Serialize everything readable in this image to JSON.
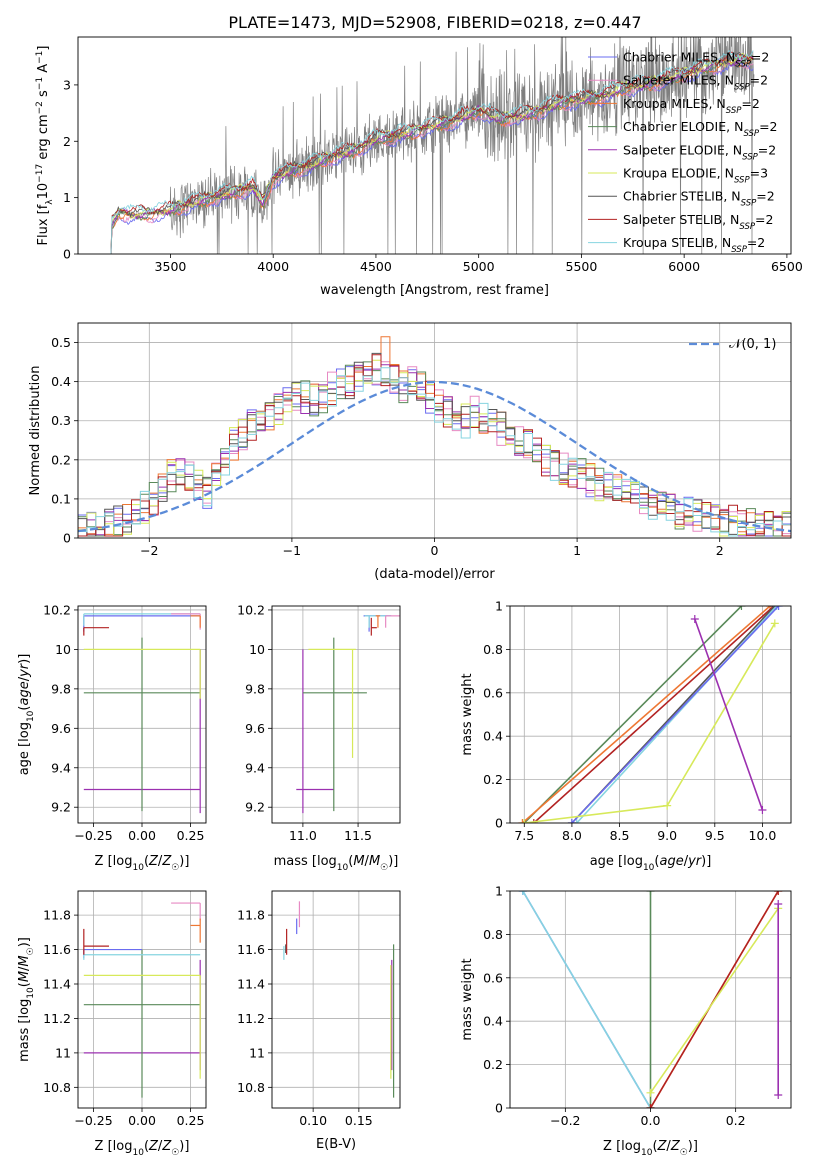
{
  "figure_title": "PLATE=1473, MJD=52908, FIBERID=0218, z=0.447",
  "colors": {
    "Chabrier MILES": "#6a6cf0",
    "Salpeter MILES": "#e78ac3",
    "Kroupa MILES": "#ee7733",
    "Chabrier ELODIE": "#5a8a5a",
    "Salpeter ELODIE": "#9b30b0",
    "Kroupa ELODIE": "#d7e95a",
    "Chabrier STELIB": "#555555",
    "Salpeter STELIB": "#b22222",
    "Kroupa STELIB": "#86d4e0",
    "data": "#7f7f7f",
    "normal_curve": "#5b8bd8"
  },
  "chart_data": [
    {
      "id": "spectrum",
      "type": "line",
      "title": "PLATE=1473, MJD=52908, FIBERID=0218, z=0.447",
      "xlabel": "wavelength [Angstrom, rest frame]",
      "ylabel_parts": [
        "Flux [f",
        "λ",
        "10",
        "−17",
        " erg cm",
        "−2",
        " s",
        "−1",
        " A",
        "−1",
        "]"
      ],
      "xlim": [
        3050,
        6520
      ],
      "ylim": [
        0,
        3.85
      ],
      "xticks": [
        3500,
        4000,
        4500,
        5000,
        5500,
        6000,
        6500
      ],
      "yticks": [
        0,
        1,
        2,
        3
      ],
      "legend": [
        {
          "name": "Chabrier MILES",
          "nssp": "2"
        },
        {
          "name": "Salpeter MILES",
          "nssp": "2"
        },
        {
          "name": "Kroupa MILES",
          "nssp": "2"
        },
        {
          "name": "Chabrier ELODIE",
          "nssp": "2"
        },
        {
          "name": "Salpeter ELODIE",
          "nssp": "2"
        },
        {
          "name": "Kroupa ELODIE",
          "nssp": "3"
        },
        {
          "name": "Chabrier STELIB",
          "nssp": "2"
        },
        {
          "name": "Salpeter STELIB",
          "nssp": "2"
        },
        {
          "name": "Kroupa STELIB",
          "nssp": "2"
        }
      ],
      "continuum": {
        "x": [
          3210,
          3250,
          3300,
          3400,
          3500,
          3600,
          3700,
          3800,
          3900,
          3950,
          4000,
          4100,
          4200,
          4300,
          4400,
          4500,
          4600,
          4700,
          4800,
          4900,
          5000,
          5100,
          5200,
          5300,
          5400,
          5500,
          5600,
          5700,
          5800,
          5900,
          6000,
          6100,
          6200,
          6300
        ],
        "y": [
          0.5,
          0.75,
          0.7,
          0.72,
          0.78,
          0.9,
          1.0,
          1.1,
          1.2,
          0.9,
          1.35,
          1.5,
          1.6,
          1.75,
          1.85,
          2.05,
          2.1,
          2.2,
          2.3,
          2.4,
          2.55,
          2.4,
          2.45,
          2.55,
          2.7,
          2.75,
          2.8,
          2.95,
          3.0,
          3.1,
          3.2,
          3.3,
          3.4,
          3.45
        ]
      },
      "data_x_range": [
        3210,
        6340
      ],
      "data_noise_start": 3500
    },
    {
      "id": "residuals",
      "type": "histogram",
      "xlabel": "(data-model)/error",
      "ylabel": "Normed distribution",
      "xlim": [
        -2.5,
        2.5
      ],
      "ylim": [
        0,
        0.55
      ],
      "xticks": [
        -2,
        -1,
        0,
        1,
        2
      ],
      "yticks": [
        0,
        0.1,
        0.2,
        0.3,
        0.4,
        0.5
      ],
      "bin_width": 0.1,
      "bin_start": -2.5,
      "reference_label": "𝒩(0, 1)",
      "envelope": [
        0.02,
        0.025,
        0.03,
        0.035,
        0.04,
        0.05,
        0.06,
        0.08,
        0.1,
        0.13,
        0.16,
        0.17,
        0.16,
        0.13,
        0.12,
        0.15,
        0.2,
        0.24,
        0.27,
        0.29,
        0.3,
        0.31,
        0.33,
        0.35,
        0.37,
        0.36,
        0.35,
        0.36,
        0.38,
        0.39,
        0.4,
        0.41,
        0.42,
        0.43,
        0.41,
        0.4,
        0.39,
        0.4,
        0.38,
        0.36,
        0.34,
        0.32,
        0.31,
        0.3,
        0.32,
        0.31,
        0.3,
        0.28,
        0.26,
        0.25,
        0.24,
        0.22,
        0.2,
        0.19,
        0.18,
        0.17,
        0.16,
        0.15,
        0.14,
        0.14,
        0.13,
        0.12,
        0.11,
        0.1,
        0.09,
        0.08,
        0.07,
        0.065,
        0.06,
        0.055,
        0.05,
        0.045,
        0.04,
        0.04,
        0.035,
        0.035,
        0.03,
        0.03,
        0.03,
        0.03
      ]
    },
    {
      "id": "z_vs_age",
      "type": "errorbar",
      "xlabel": "Z [log10(Z/Z☉)]",
      "ylabel": "age  [log10(age/yr)]",
      "xlim": [
        -0.33,
        0.33
      ],
      "ylim": [
        9.12,
        10.22
      ],
      "xticks": [
        -0.25,
        0,
        0.25
      ],
      "xticklabels": [
        "−0.25",
        "0.00",
        "0.25"
      ],
      "yticks": [
        9.2,
        9.4,
        9.6,
        9.8,
        10.0,
        10.2
      ],
      "points": [
        {
          "model": "Salpeter ELODIE",
          "x": 0.3,
          "y": 9.29,
          "xerr": [
            0.6,
            0.0
          ],
          "yerr": [
            0.12,
            0.71
          ]
        },
        {
          "model": "Chabrier ELODIE",
          "x": 0.0,
          "y": 9.78,
          "xerr": [
            0.3,
            0.3
          ],
          "yerr": [
            0.6,
            0.28
          ]
        },
        {
          "model": "Kroupa ELODIE",
          "x": 0.3,
          "y": 10.0,
          "xerr": [
            0.6,
            0.0
          ],
          "yerr": [
            0.25,
            0.0
          ]
        },
        {
          "model": "Chabrier MILES",
          "x": -0.3,
          "y": 10.17,
          "xerr": [
            0.0,
            0.6
          ],
          "yerr": [
            0.08,
            0.0
          ]
        },
        {
          "model": "Kroupa STELIB",
          "x": -0.3,
          "y": 10.18,
          "xerr": [
            0.0,
            0.6
          ],
          "yerr": [
            0.06,
            0.0
          ]
        },
        {
          "model": "Salpeter STELIB",
          "x": -0.3,
          "y": 10.11,
          "xerr": [
            0.0,
            0.13
          ],
          "yerr": [
            0.04,
            0.0
          ]
        },
        {
          "model": "Salpeter MILES",
          "x": 0.3,
          "y": 10.18,
          "xerr": [
            0.15,
            0.0
          ],
          "yerr": [
            0.08,
            0.0
          ]
        },
        {
          "model": "Kroupa MILES",
          "x": 0.3,
          "y": 10.17,
          "xerr": [
            0.05,
            0.0
          ],
          "yerr": [
            0.06,
            0.0
          ]
        }
      ]
    },
    {
      "id": "mass_vs_age",
      "type": "errorbar",
      "xlabel": "mass [log10(M/M☉)]",
      "ylabel": "",
      "xlim": [
        10.72,
        11.88
      ],
      "ylim": [
        9.12,
        10.22
      ],
      "xticks": [
        11.0,
        11.5
      ],
      "xticklabels": [
        "11.0",
        "11.5"
      ],
      "yticks": [
        9.2,
        9.4,
        9.6,
        9.8,
        10.0,
        10.2
      ],
      "points": [
        {
          "model": "Salpeter ELODIE",
          "x": 11.0,
          "y": 9.29,
          "xerr": [
            0.06,
            0.28
          ],
          "yerr": [
            0.12,
            0.71
          ]
        },
        {
          "model": "Chabrier ELODIE",
          "x": 11.28,
          "y": 9.78,
          "xerr": [
            0.28,
            0.3
          ],
          "yerr": [
            0.6,
            0.28
          ]
        },
        {
          "model": "Kroupa ELODIE",
          "x": 11.45,
          "y": 10.0,
          "xerr": [
            0.4,
            0.03
          ],
          "yerr": [
            0.55,
            0.0
          ]
        },
        {
          "model": "Chabrier MILES",
          "x": 11.6,
          "y": 10.17,
          "xerr": [
            0.05,
            0.2
          ],
          "yerr": [
            0.08,
            0.0
          ]
        },
        {
          "model": "Kroupa STELIB",
          "x": 11.6,
          "y": 10.17,
          "xerr": [
            0.04,
            0.2
          ],
          "yerr": [
            0.06,
            0.0
          ]
        },
        {
          "model": "Salpeter STELIB",
          "x": 11.62,
          "y": 10.11,
          "xerr": [
            0.0,
            0.05
          ],
          "yerr": [
            0.04,
            0.05
          ]
        },
        {
          "model": "Salpeter MILES",
          "x": 11.75,
          "y": 10.17,
          "xerr": [
            0.0,
            0.13
          ],
          "yerr": [
            0.06,
            0.0
          ]
        },
        {
          "model": "Kroupa MILES",
          "x": 11.68,
          "y": 10.17,
          "xerr": [
            0.02,
            0.02
          ],
          "yerr": [
            0.06,
            0.0
          ]
        }
      ]
    },
    {
      "id": "age_vs_weight",
      "type": "line",
      "xlabel": "age  [log10(age/yr)]",
      "ylabel": "mass weight",
      "xlim": [
        7.35,
        10.3
      ],
      "ylim": [
        0,
        1
      ],
      "xticks": [
        7.5,
        8.0,
        8.5,
        9.0,
        9.5,
        10.0
      ],
      "xticklabels": [
        "7.5",
        "8.0",
        "8.5",
        "9.0",
        "9.5",
        "10.0"
      ],
      "yticks": [
        0,
        0.2,
        0.4,
        0.6,
        0.8,
        1.0
      ],
      "series": [
        {
          "model": "Chabrier ELODIE",
          "x": [
            7.5,
            9.78
          ],
          "y": [
            0.0,
            1.0
          ]
        },
        {
          "model": "Kroupa MILES",
          "x": [
            7.48,
            10.08
          ],
          "y": [
            0.0,
            1.0
          ]
        },
        {
          "model": "Salpeter STELIB",
          "x": [
            7.6,
            10.12
          ],
          "y": [
            0.0,
            1.0
          ]
        },
        {
          "model": "Chabrier STELIB",
          "x": [
            8.0,
            10.13
          ],
          "y": [
            0.0,
            1.0
          ]
        },
        {
          "model": "Kroupa STELIB",
          "x": [
            8.05,
            10.15
          ],
          "y": [
            0.0,
            1.0
          ]
        },
        {
          "model": "Chabrier MILES",
          "x": [
            8.0,
            10.17
          ],
          "y": [
            0.0,
            1.0
          ]
        },
        {
          "model": "Kroupa ELODIE",
          "x": [
            7.5,
            9.0,
            10.13
          ],
          "y": [
            0.0,
            0.08,
            0.92
          ]
        },
        {
          "model": "Salpeter ELODIE",
          "x": [
            9.29,
            10.0
          ],
          "y": [
            0.94,
            0.06
          ]
        }
      ]
    },
    {
      "id": "z_vs_mass",
      "type": "errorbar",
      "xlabel": "Z [log10(Z/Z☉)]",
      "ylabel": "mass [log10(M/M☉)]",
      "xlim": [
        -0.33,
        0.33
      ],
      "ylim": [
        10.68,
        11.94
      ],
      "xticks": [
        -0.25,
        0,
        0.25
      ],
      "xticklabels": [
        "−0.25",
        "0.00",
        "0.25"
      ],
      "yticks": [
        10.8,
        11.0,
        11.2,
        11.4,
        11.6,
        11.8
      ],
      "points": [
        {
          "model": "Salpeter ELODIE",
          "x": 0.3,
          "y": 11.0,
          "xerr": [
            0.6,
            0.0
          ],
          "yerr": [
            0.1,
            0.54
          ]
        },
        {
          "model": "Chabrier ELODIE",
          "x": 0.0,
          "y": 11.28,
          "xerr": [
            0.3,
            0.3
          ],
          "yerr": [
            0.54,
            0.32
          ]
        },
        {
          "model": "Kroupa ELODIE",
          "x": 0.3,
          "y": 11.45,
          "xerr": [
            0.6,
            0.0
          ],
          "yerr": [
            0.6,
            0.0
          ]
        },
        {
          "model": "Chabrier MILES",
          "x": -0.3,
          "y": 11.6,
          "xerr": [
            0.0,
            0.3
          ],
          "yerr": [
            0.05,
            0.0
          ]
        },
        {
          "model": "Kroupa STELIB",
          "x": -0.3,
          "y": 11.57,
          "xerr": [
            0.0,
            0.6
          ],
          "yerr": [
            0.03,
            0.0
          ]
        },
        {
          "model": "Salpeter STELIB",
          "x": -0.3,
          "y": 11.62,
          "xerr": [
            0.0,
            0.13
          ],
          "yerr": [
            0.05,
            0.1
          ]
        },
        {
          "model": "Salpeter MILES",
          "x": 0.3,
          "y": 11.87,
          "xerr": [
            0.15,
            0.0
          ],
          "yerr": [
            0.1,
            0.0
          ]
        },
        {
          "model": "Kroupa MILES",
          "x": 0.3,
          "y": 11.74,
          "xerr": [
            0.05,
            0.0
          ],
          "yerr": [
            0.1,
            0.04
          ]
        }
      ]
    },
    {
      "id": "ebv_vs_mass",
      "type": "errorbar",
      "xlabel": "E(B-V)",
      "ylabel": "",
      "xlim": [
        0.055,
        0.195
      ],
      "ylim": [
        10.68,
        11.94
      ],
      "xticks": [
        0.1,
        0.15
      ],
      "xticklabels": [
        "0.10",
        "0.15"
      ],
      "yticks": [
        10.8,
        11.0,
        11.2,
        11.4,
        11.6,
        11.8
      ],
      "points": [
        {
          "model": "Kroupa STELIB",
          "x": 0.068,
          "y": 11.57,
          "xerr": [
            0.0,
            0.0
          ],
          "yerr": [
            0.03,
            0.05
          ]
        },
        {
          "model": "Chabrier STELIB",
          "x": 0.07,
          "y": 11.6,
          "xerr": [
            0.0,
            0.0
          ],
          "yerr": [
            0.02,
            0.03
          ]
        },
        {
          "model": "Salpeter STELIB",
          "x": 0.071,
          "y": 11.62,
          "xerr": [
            0.0,
            0.0
          ],
          "yerr": [
            0.05,
            0.1
          ]
        },
        {
          "model": "Chabrier MILES",
          "x": 0.082,
          "y": 11.74,
          "xerr": [
            0.0,
            0.0
          ],
          "yerr": [
            0.05,
            0.04
          ]
        },
        {
          "model": "Salpeter MILES",
          "x": 0.085,
          "y": 11.8,
          "xerr": [
            0.0,
            0.0
          ],
          "yerr": [
            0.07,
            0.08
          ]
        },
        {
          "model": "Salpeter ELODIE",
          "x": 0.186,
          "y": 11.0,
          "xerr": [
            0.0,
            0.0
          ],
          "yerr": [
            0.1,
            0.54
          ]
        },
        {
          "model": "Kroupa ELODIE",
          "x": 0.185,
          "y": 11.45,
          "xerr": [
            0.0,
            0.0
          ],
          "yerr": [
            0.6,
            0.06
          ]
        },
        {
          "model": "Chabrier ELODIE",
          "x": 0.188,
          "y": 11.28,
          "xerr": [
            0.0,
            0.0
          ],
          "yerr": [
            0.54,
            0.35
          ]
        }
      ]
    },
    {
      "id": "z_vs_weight",
      "type": "line",
      "xlabel": "Z [log10(Z/Z☉)]",
      "ylabel": "mass weight",
      "xlim": [
        -0.33,
        0.33
      ],
      "ylim": [
        0,
        1
      ],
      "xticks": [
        -0.2,
        0,
        0.2
      ],
      "xticklabels": [
        "−0.2",
        "0.0",
        "0.2"
      ],
      "yticks": [
        0,
        0.2,
        0.4,
        0.6,
        0.8,
        1.0
      ],
      "series": [
        {
          "model": "Chabrier MILES",
          "x": [
            -0.3,
            0.0
          ],
          "y": [
            1.0,
            0.0
          ]
        },
        {
          "model": "Kroupa STELIB",
          "x": [
            -0.3,
            0.0
          ],
          "y": [
            1.0,
            0.0
          ]
        },
        {
          "model": "Chabrier ELODIE",
          "x": [
            0.0,
            0.0
          ],
          "y": [
            0.0,
            1.0
          ]
        },
        {
          "model": "Kroupa MILES",
          "x": [
            0.0,
            0.3
          ],
          "y": [
            0.0,
            1.0
          ]
        },
        {
          "model": "Salpeter STELIB",
          "x": [
            0.0,
            0.3
          ],
          "y": [
            0.0,
            1.0
          ]
        },
        {
          "model": "Kroupa ELODIE",
          "x": [
            0.0,
            0.3
          ],
          "y": [
            0.07,
            0.92
          ]
        },
        {
          "model": "Salpeter ELODIE",
          "x": [
            0.3,
            0.3
          ],
          "y": [
            0.06,
            0.94
          ]
        }
      ]
    }
  ]
}
